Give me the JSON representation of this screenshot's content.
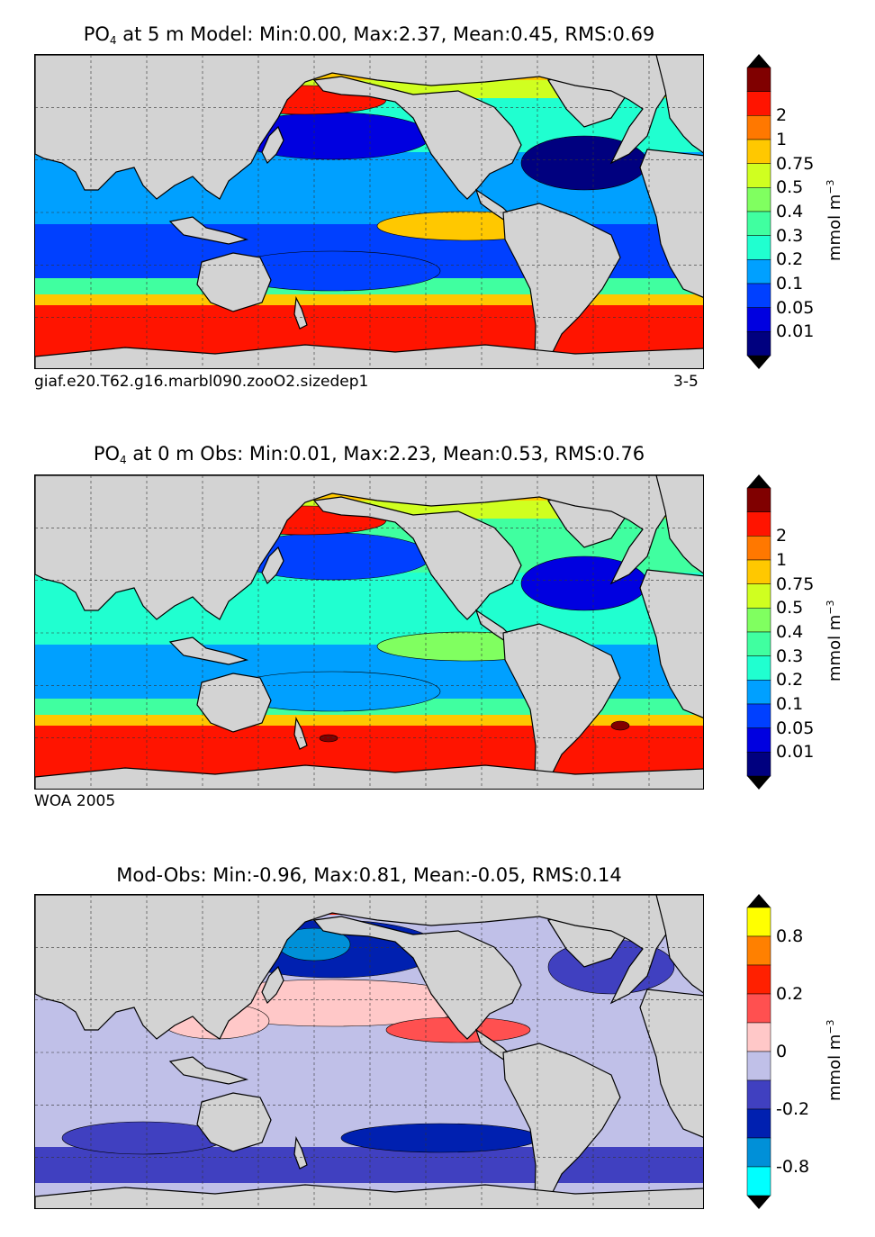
{
  "panels": [
    {
      "title_var": "PO",
      "title_sub": "4",
      "title_rest": " at 5 m Model: Min:0.00, Max:2.37, Mean:0.45, RMS:0.69",
      "note_left": "giaf.e20.T62.g16.marbl090.zooO2.sizedep1",
      "note_right": "3-5",
      "kind": "model",
      "colorbar": {
        "colors": [
          "#00007f",
          "#0000e0",
          "#0040ff",
          "#00a0ff",
          "#20ffd0",
          "#40ffa0",
          "#80ff60",
          "#d0ff20",
          "#ffc800",
          "#ff7800",
          "#ff1400",
          "#800000"
        ],
        "ticks": [
          "0.01",
          "0.05",
          "0.1",
          "0.2",
          "0.3",
          "0.4",
          "0.5",
          "0.75",
          "1",
          "2"
        ],
        "unit": "mmol m",
        "unit_exp": "−3"
      }
    },
    {
      "title_var": "PO",
      "title_sub": "4",
      "title_rest": " at 0 m Obs: Min:0.01, Max:2.23, Mean:0.53, RMS:0.76",
      "note_left": "WOA 2005",
      "note_right": "",
      "kind": "obs",
      "colorbar": {
        "colors": [
          "#00007f",
          "#0000e0",
          "#0040ff",
          "#00a0ff",
          "#20ffd0",
          "#40ffa0",
          "#80ff60",
          "#d0ff20",
          "#ffc800",
          "#ff7800",
          "#ff1400",
          "#800000"
        ],
        "ticks": [
          "0.01",
          "0.05",
          "0.1",
          "0.2",
          "0.3",
          "0.4",
          "0.5",
          "0.75",
          "1",
          "2"
        ],
        "unit": "mmol m",
        "unit_exp": "−3"
      }
    },
    {
      "title_var": "",
      "title_sub": "",
      "title_rest": "Mod-Obs: Min:-0.96, Max:0.81, Mean:-0.05, RMS:0.14",
      "note_left": "",
      "note_right": "",
      "kind": "diff",
      "colorbar": {
        "colors": [
          "#00ffff",
          "#0090d8",
          "#0020b0",
          "#4040c0",
          "#c0c0e8",
          "#ffc8c8",
          "#ff5050",
          "#ff2000",
          "#ff8000",
          "#ffff00"
        ],
        "ticks": [
          "-0.8",
          "",
          "-0.2",
          "",
          "0",
          "",
          "0.2",
          "",
          "0.8"
        ],
        "unit": "mmol m",
        "unit_exp": "−3"
      }
    }
  ],
  "colors": {
    "land": "#d3d3d3",
    "grid": "#333333",
    "coast": "#000000"
  }
}
